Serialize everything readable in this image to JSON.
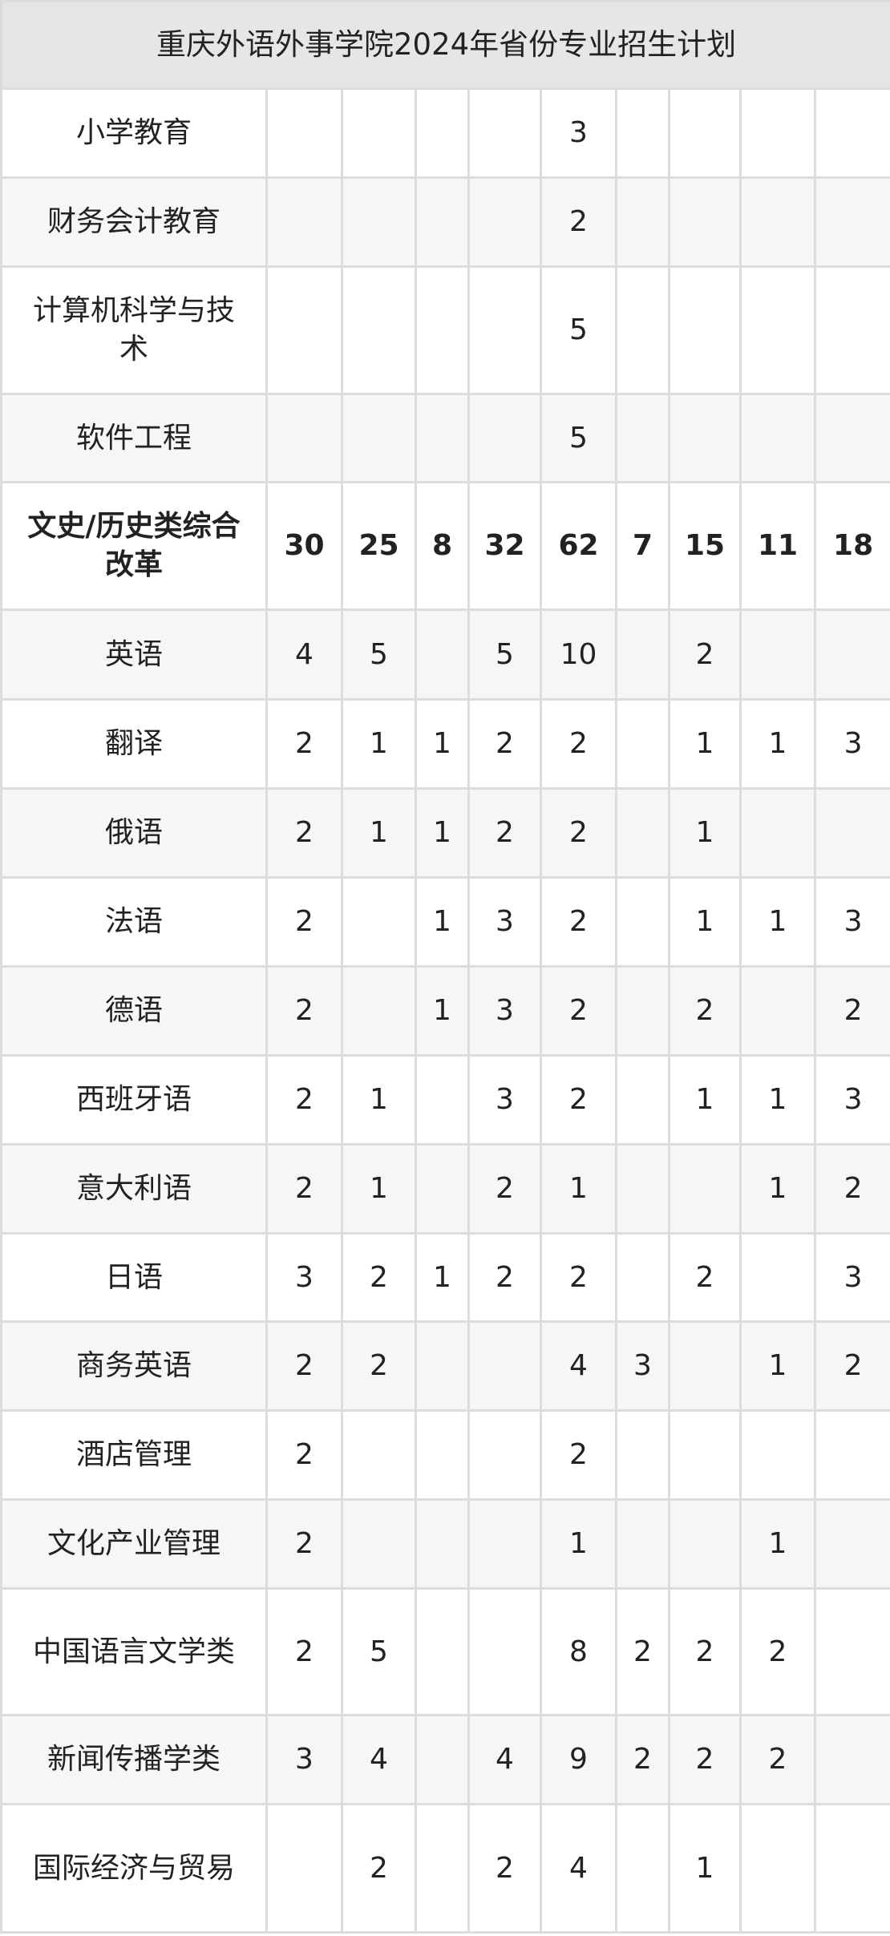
{
  "title": "重庆外语外事学院2024年省份专业招生计划",
  "rows": [
    {
      "name": "小学教育",
      "bold": false,
      "cells": [
        "",
        "",
        "",
        "",
        "3",
        "",
        "",
        "",
        ""
      ]
    },
    {
      "name": "财务会计教育",
      "bold": false,
      "cells": [
        "",
        "",
        "",
        "",
        "2",
        "",
        "",
        "",
        ""
      ]
    },
    {
      "name": "计算机科学与技术",
      "bold": false,
      "cells": [
        "",
        "",
        "",
        "",
        "5",
        "",
        "",
        "",
        ""
      ]
    },
    {
      "name": "软件工程",
      "bold": false,
      "cells": [
        "",
        "",
        "",
        "",
        "5",
        "",
        "",
        "",
        ""
      ]
    },
    {
      "name": "文史/历史类综合改革",
      "bold": true,
      "cells": [
        "30",
        "25",
        "8",
        "32",
        "62",
        "7",
        "15",
        "11",
        "18"
      ]
    },
    {
      "name": "英语",
      "bold": false,
      "cells": [
        "4",
        "5",
        "",
        "5",
        "10",
        "",
        "2",
        "",
        ""
      ]
    },
    {
      "name": "翻译",
      "bold": false,
      "cells": [
        "2",
        "1",
        "1",
        "2",
        "2",
        "",
        "1",
        "1",
        "3"
      ]
    },
    {
      "name": "俄语",
      "bold": false,
      "cells": [
        "2",
        "1",
        "1",
        "2",
        "2",
        "",
        "1",
        "",
        ""
      ]
    },
    {
      "name": "法语",
      "bold": false,
      "cells": [
        "2",
        "",
        "1",
        "3",
        "2",
        "",
        "1",
        "1",
        "3"
      ]
    },
    {
      "name": "德语",
      "bold": false,
      "cells": [
        "2",
        "",
        "1",
        "3",
        "2",
        "",
        "2",
        "",
        "2"
      ]
    },
    {
      "name": "西班牙语",
      "bold": false,
      "cells": [
        "2",
        "1",
        "",
        "3",
        "2",
        "",
        "1",
        "1",
        "3"
      ]
    },
    {
      "name": "意大利语",
      "bold": false,
      "cells": [
        "2",
        "1",
        "",
        "2",
        "1",
        "",
        "",
        "1",
        "2"
      ]
    },
    {
      "name": "日语",
      "bold": false,
      "cells": [
        "3",
        "2",
        "1",
        "2",
        "2",
        "",
        "2",
        "",
        "3"
      ]
    },
    {
      "name": "商务英语",
      "bold": false,
      "cells": [
        "2",
        "2",
        "",
        "",
        "4",
        "3",
        "",
        "1",
        "2"
      ]
    },
    {
      "name": "酒店管理",
      "bold": false,
      "cells": [
        "2",
        "",
        "",
        "",
        "2",
        "",
        "",
        "",
        ""
      ]
    },
    {
      "name": "文化产业管理",
      "bold": false,
      "cells": [
        "2",
        "",
        "",
        "",
        "1",
        "",
        "",
        "1",
        ""
      ]
    },
    {
      "name": "中国语言文学类",
      "bold": false,
      "cells": [
        "2",
        "5",
        "",
        "",
        "8",
        "2",
        "2",
        "2",
        ""
      ]
    },
    {
      "name": "新闻传播学类",
      "bold": false,
      "cells": [
        "3",
        "4",
        "",
        "4",
        "9",
        "2",
        "2",
        "2",
        ""
      ]
    },
    {
      "name": "国际经济与贸易",
      "bold": false,
      "cells": [
        "",
        "2",
        "",
        "2",
        "4",
        "",
        "1",
        "",
        ""
      ]
    }
  ]
}
